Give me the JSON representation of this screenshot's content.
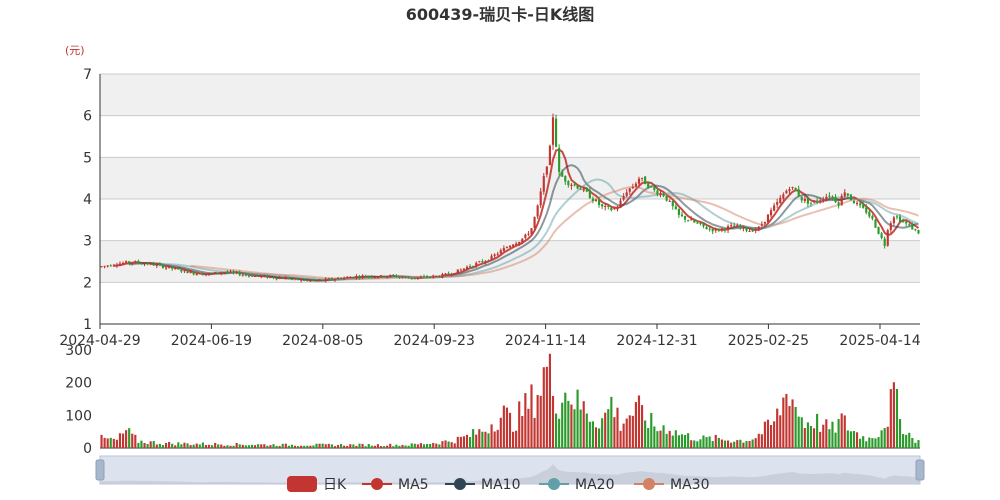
{
  "chart_data": {
    "type": "candlestick",
    "title": "600439-瑞贝卡-日K线图",
    "y_unit": "(元)",
    "price_axis": {
      "ylim": [
        1,
        7
      ],
      "ticks": [
        1,
        2,
        3,
        4,
        5,
        6,
        7
      ],
      "grid": true,
      "band_colors": [
        "#f0f0f0",
        "#ffffff"
      ]
    },
    "volume_axis": {
      "ylim": [
        0,
        300
      ],
      "ticks": [
        0,
        100,
        200,
        300
      ]
    },
    "x_tick_labels": [
      "2024-04-29",
      "2024-06-19",
      "2024-08-05",
      "2024-09-23",
      "2024-11-14",
      "2024-12-31",
      "2025-02-25",
      "2025-04-14"
    ],
    "legend": {
      "position": "bottom",
      "items": [
        {
          "name": "日K",
          "color": "#c23531",
          "kind": "candle"
        },
        {
          "name": "MA5",
          "color": "#c23531",
          "kind": "line"
        },
        {
          "name": "MA10",
          "color": "#2f4554",
          "kind": "line"
        },
        {
          "name": "MA20",
          "color": "#61a0a8",
          "kind": "line"
        },
        {
          "name": "MA30",
          "color": "#d48265",
          "kind": "line"
        }
      ]
    },
    "colors": {
      "up": "#c23531",
      "down": "#2a9a2a",
      "slider_fill": "#dde3ee",
      "slider_border": "#b8c4d8"
    },
    "price_anchors": [
      [
        0,
        2.38
      ],
      [
        5,
        2.45
      ],
      [
        10,
        2.48
      ],
      [
        15,
        2.45
      ],
      [
        20,
        2.38
      ],
      [
        25,
        2.3
      ],
      [
        30,
        2.22
      ],
      [
        35,
        2.2
      ],
      [
        40,
        2.25
      ],
      [
        45,
        2.2
      ],
      [
        50,
        2.15
      ],
      [
        55,
        2.12
      ],
      [
        60,
        2.1
      ],
      [
        65,
        2.05
      ],
      [
        70,
        2.03
      ],
      [
        75,
        2.08
      ],
      [
        80,
        2.12
      ],
      [
        85,
        2.15
      ],
      [
        90,
        2.14
      ],
      [
        95,
        2.15
      ],
      [
        100,
        2.1
      ],
      [
        105,
        2.12
      ],
      [
        110,
        2.15
      ],
      [
        113,
        2.2
      ],
      [
        117,
        2.3
      ],
      [
        120,
        2.4
      ],
      [
        124,
        2.5
      ],
      [
        127,
        2.6
      ],
      [
        130,
        2.75
      ],
      [
        133,
        2.9
      ],
      [
        136,
        3.0
      ],
      [
        138,
        3.1
      ],
      [
        140,
        3.3
      ],
      [
        142,
        3.8
      ],
      [
        144,
        4.5
      ],
      [
        146,
        5.2
      ],
      [
        147,
        6.0
      ],
      [
        149,
        4.6
      ],
      [
        152,
        4.4
      ],
      [
        155,
        4.3
      ],
      [
        157,
        4.2
      ],
      [
        160,
        4.0
      ],
      [
        163,
        3.8
      ],
      [
        166,
        3.75
      ],
      [
        168,
        3.8
      ],
      [
        171,
        4.2
      ],
      [
        173,
        4.3
      ],
      [
        175,
        4.5
      ],
      [
        177,
        4.4
      ],
      [
        180,
        4.2
      ],
      [
        183,
        4.1
      ],
      [
        186,
        3.8
      ],
      [
        188,
        3.6
      ],
      [
        191,
        3.5
      ],
      [
        194,
        3.4
      ],
      [
        197,
        3.3
      ],
      [
        200,
        3.25
      ],
      [
        203,
        3.3
      ],
      [
        206,
        3.35
      ],
      [
        208,
        3.3
      ],
      [
        211,
        3.25
      ],
      [
        214,
        3.3
      ],
      [
        217,
        3.6
      ],
      [
        220,
        3.9
      ],
      [
        222,
        4.1
      ],
      [
        224,
        4.3
      ],
      [
        226,
        4.2
      ],
      [
        228,
        4.0
      ],
      [
        231,
        3.9
      ],
      [
        234,
        4.0
      ],
      [
        237,
        4.1
      ],
      [
        240,
        3.9
      ],
      [
        242,
        4.2
      ],
      [
        244,
        4.0
      ],
      [
        247,
        3.8
      ],
      [
        249,
        3.7
      ],
      [
        251,
        3.5
      ],
      [
        253,
        3.2
      ],
      [
        255,
        2.9
      ],
      [
        256,
        3.3
      ],
      [
        258,
        3.6
      ],
      [
        260,
        3.5
      ],
      [
        262,
        3.4
      ],
      [
        264,
        3.3
      ],
      [
        266,
        3.2
      ]
    ],
    "volume_anchors": [
      [
        0,
        30
      ],
      [
        5,
        25
      ],
      [
        8,
        55
      ],
      [
        12,
        22
      ],
      [
        20,
        15
      ],
      [
        40,
        12
      ],
      [
        60,
        10
      ],
      [
        80,
        10
      ],
      [
        100,
        10
      ],
      [
        110,
        18
      ],
      [
        115,
        25
      ],
      [
        120,
        40
      ],
      [
        125,
        60
      ],
      [
        128,
        90
      ],
      [
        131,
        110
      ],
      [
        134,
        80
      ],
      [
        137,
        120
      ],
      [
        140,
        150
      ],
      [
        143,
        200
      ],
      [
        145,
        260
      ],
      [
        147,
        200
      ],
      [
        149,
        150
      ],
      [
        152,
        190
      ],
      [
        155,
        140
      ],
      [
        158,
        120
      ],
      [
        161,
        90
      ],
      [
        164,
        100
      ],
      [
        166,
        150
      ],
      [
        169,
        80
      ],
      [
        172,
        110
      ],
      [
        175,
        120
      ],
      [
        178,
        90
      ],
      [
        181,
        60
      ],
      [
        184,
        70
      ],
      [
        187,
        50
      ],
      [
        190,
        40
      ],
      [
        195,
        30
      ],
      [
        200,
        30
      ],
      [
        205,
        25
      ],
      [
        210,
        25
      ],
      [
        213,
        35
      ],
      [
        216,
        60
      ],
      [
        219,
        80
      ],
      [
        222,
        150
      ],
      [
        224,
        200
      ],
      [
        226,
        130
      ],
      [
        229,
        80
      ],
      [
        232,
        90
      ],
      [
        235,
        70
      ],
      [
        238,
        60
      ],
      [
        241,
        90
      ],
      [
        244,
        60
      ],
      [
        247,
        40
      ],
      [
        250,
        30
      ],
      [
        253,
        50
      ],
      [
        256,
        100
      ],
      [
        258,
        180
      ],
      [
        260,
        90
      ],
      [
        262,
        60
      ],
      [
        264,
        30
      ],
      [
        266,
        25
      ]
    ]
  }
}
